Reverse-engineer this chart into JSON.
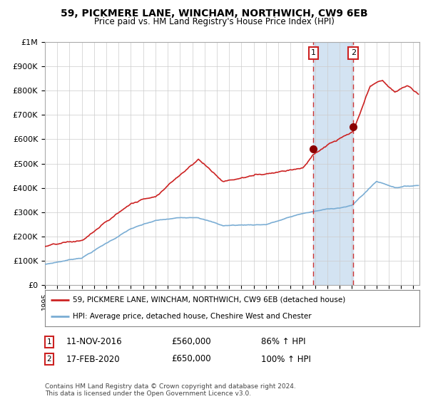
{
  "title": "59, PICKMERE LANE, WINCHAM, NORTHWICH, CW9 6EB",
  "subtitle": "Price paid vs. HM Land Registry's House Price Index (HPI)",
  "legend_line1": "59, PICKMERE LANE, WINCHAM, NORTHWICH, CW9 6EB (detached house)",
  "legend_line2": "HPI: Average price, detached house, Cheshire West and Chester",
  "annotation1_date": "11-NOV-2016",
  "annotation1_price": "£560,000",
  "annotation1_hpi": "86% ↑ HPI",
  "annotation2_date": "17-FEB-2020",
  "annotation2_price": "£650,000",
  "annotation2_hpi": "100% ↑ HPI",
  "footer": "Contains HM Land Registry data © Crown copyright and database right 2024.\nThis data is licensed under the Open Government Licence v3.0.",
  "sale1_date_num": 2016.87,
  "sale1_price": 560000,
  "sale2_date_num": 2020.12,
  "sale2_price": 650000,
  "hpi_line_color": "#7aadd4",
  "price_line_color": "#cc2222",
  "sale_dot_color": "#8b0000",
  "vline_color": "#cc3333",
  "shade_color": "#ccdff0",
  "grid_color": "#cccccc",
  "background_color": "#ffffff",
  "ylim": [
    0,
    1000000
  ],
  "xlim_start": 1995.0,
  "xlim_end": 2025.5
}
